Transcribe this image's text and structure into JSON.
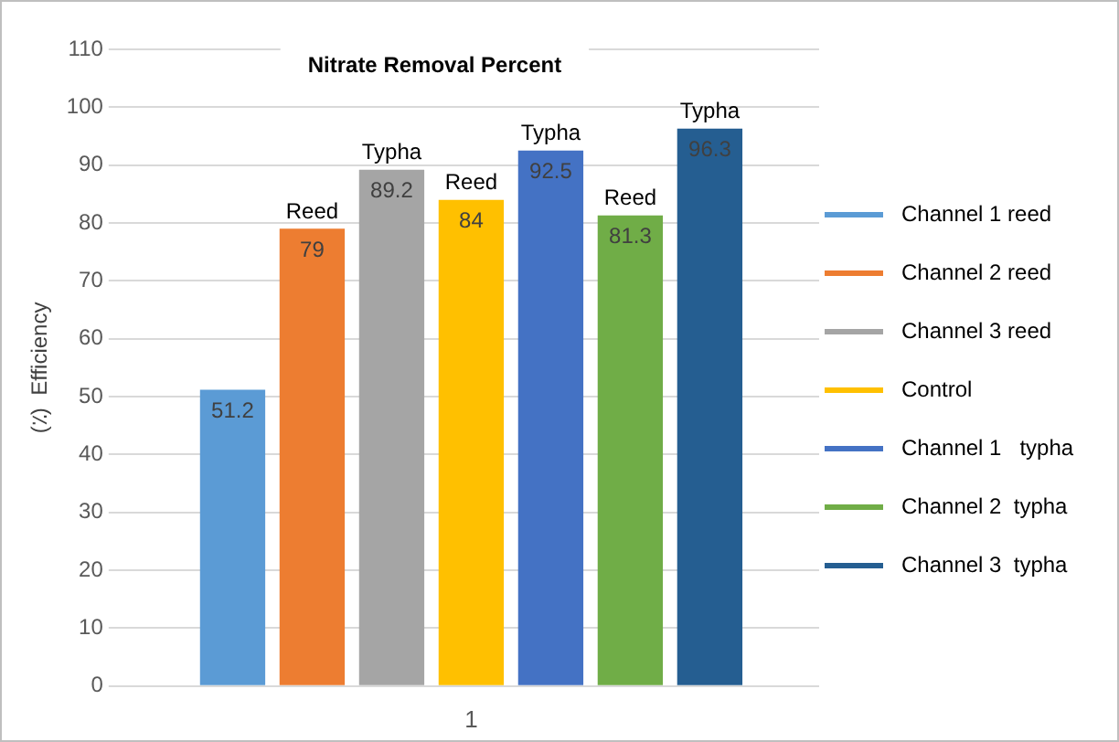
{
  "chart_data": {
    "type": "bar",
    "title": "Nitrate Removal Percent",
    "ylabel": "(٪)  Efficiency",
    "categories": [
      "1"
    ],
    "series": [
      {
        "name": "Channel 1 reed",
        "color": "#5b9bd5",
        "values": [
          51.2
        ]
      },
      {
        "name": "Channel 2 reed",
        "color": "#ed7d31",
        "values": [
          79
        ]
      },
      {
        "name": "Channel 3 reed",
        "color": "#a5a5a5",
        "values": [
          89.2
        ]
      },
      {
        "name": "Control",
        "color": "#ffc000",
        "values": [
          84
        ]
      },
      {
        "name": "Channel 1   typha",
        "color": "#4472c4",
        "values": [
          92.5
        ]
      },
      {
        "name": "Channel 2  typha",
        "color": "#70ad47",
        "values": [
          81.3
        ]
      },
      {
        "name": "Channel 3  typha",
        "color": "#255e91",
        "values": [
          96.3
        ]
      }
    ],
    "ylim": [
      0,
      110
    ],
    "yticks": [
      0,
      10,
      20,
      30,
      40,
      50,
      60,
      70,
      80,
      90,
      100,
      110
    ],
    "grid": "y",
    "legend": "right",
    "data_labels": true,
    "annotations": [
      "Reed",
      "Typha",
      "Reed",
      "Typha",
      "Reed",
      "Typha"
    ]
  }
}
